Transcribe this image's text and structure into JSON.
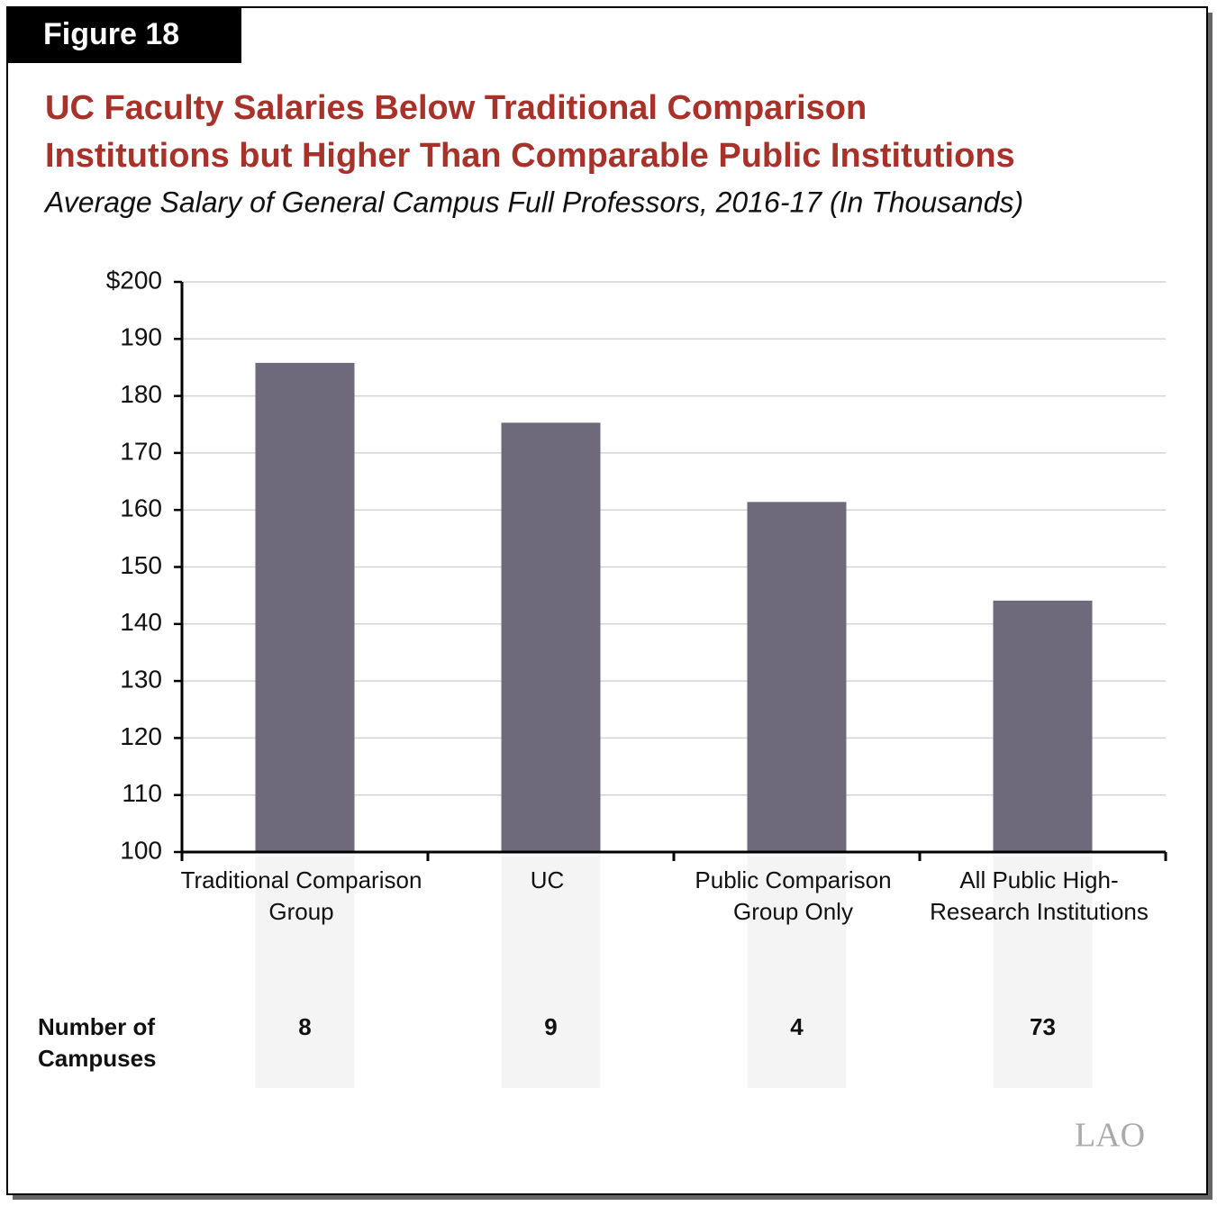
{
  "chart_data": {
    "type": "bar",
    "figure_label": "Figure 18",
    "title": [
      "UC Faculty Salaries Below Traditional Comparison",
      "Institutions but Higher Than Comparable Public Institutions"
    ],
    "subtitle": "Average Salary of General Campus Full Professors, 2016-17 (In Thousands)",
    "categories": [
      "Traditional Comparison Group",
      "UC",
      "Public Comparison Group Only",
      "All Public High-Research Institutions"
    ],
    "values": [
      185.8,
      175.3,
      161.4,
      144.1
    ],
    "color": "#6e6a7c",
    "ylim": [
      100,
      200
    ],
    "yticks": [
      100,
      110,
      120,
      130,
      140,
      150,
      160,
      170,
      180,
      190,
      {
        "value": 200,
        "label": "$200"
      }
    ],
    "grid": true,
    "campuses": {
      "label": "Number of Campuses",
      "values": [
        8,
        9,
        4,
        73
      ]
    },
    "logo": "LAO"
  }
}
